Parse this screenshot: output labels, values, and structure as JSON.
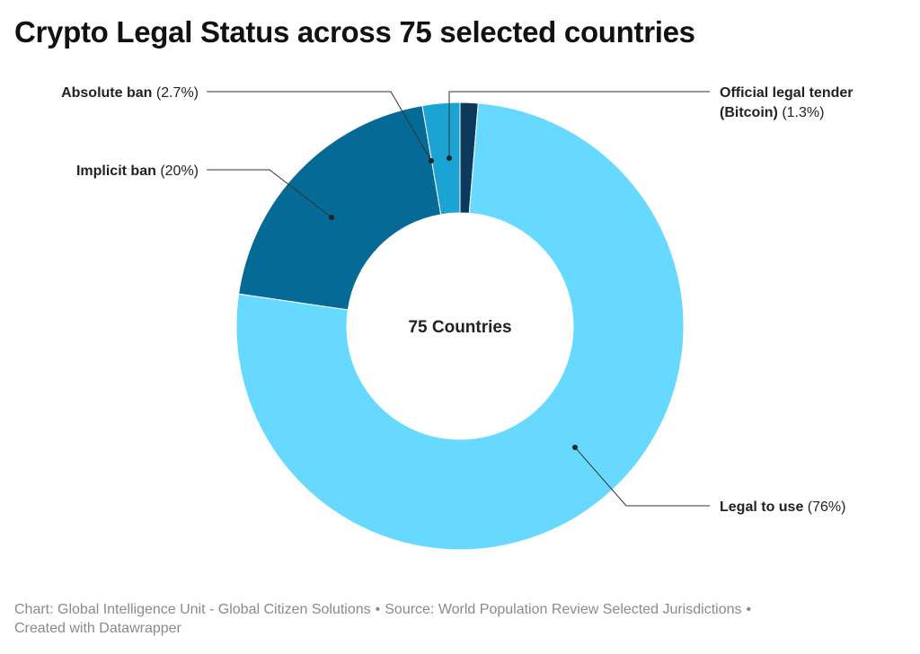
{
  "title": "Crypto Legal Status across 75 selected countries",
  "footer": {
    "chart_credit": "Chart: Global Intelligence Unit - Global Citizen Solutions",
    "source": "Source: World Population Review Selected Jurisdictions",
    "created_with": "Created with Datawrapper"
  },
  "chart_data": {
    "type": "pie",
    "variant": "donut",
    "title": "Crypto Legal Status across 75 selected countries",
    "center_label": "75 Countries",
    "slices": [
      {
        "name": "Official legal tender (Bitcoin)",
        "value": 1.3,
        "value_label": "(1.3%)",
        "color": "#0b3a5c",
        "label_lines": [
          "Official legal tender",
          "(Bitcoin)"
        ]
      },
      {
        "name": "Legal to use",
        "value": 76,
        "value_label": "(76%)",
        "color": "#67d9ff",
        "label_lines": [
          "Legal to use"
        ]
      },
      {
        "name": "Implicit ban",
        "value": 20,
        "value_label": "(20%)",
        "color": "#066a97",
        "label_lines": [
          "Implicit ban"
        ]
      },
      {
        "name": "Absolute ban",
        "value": 2.7,
        "value_label": "(2.7%)",
        "color": "#1ba3d4",
        "label_lines": [
          "Absolute ban"
        ]
      }
    ]
  }
}
